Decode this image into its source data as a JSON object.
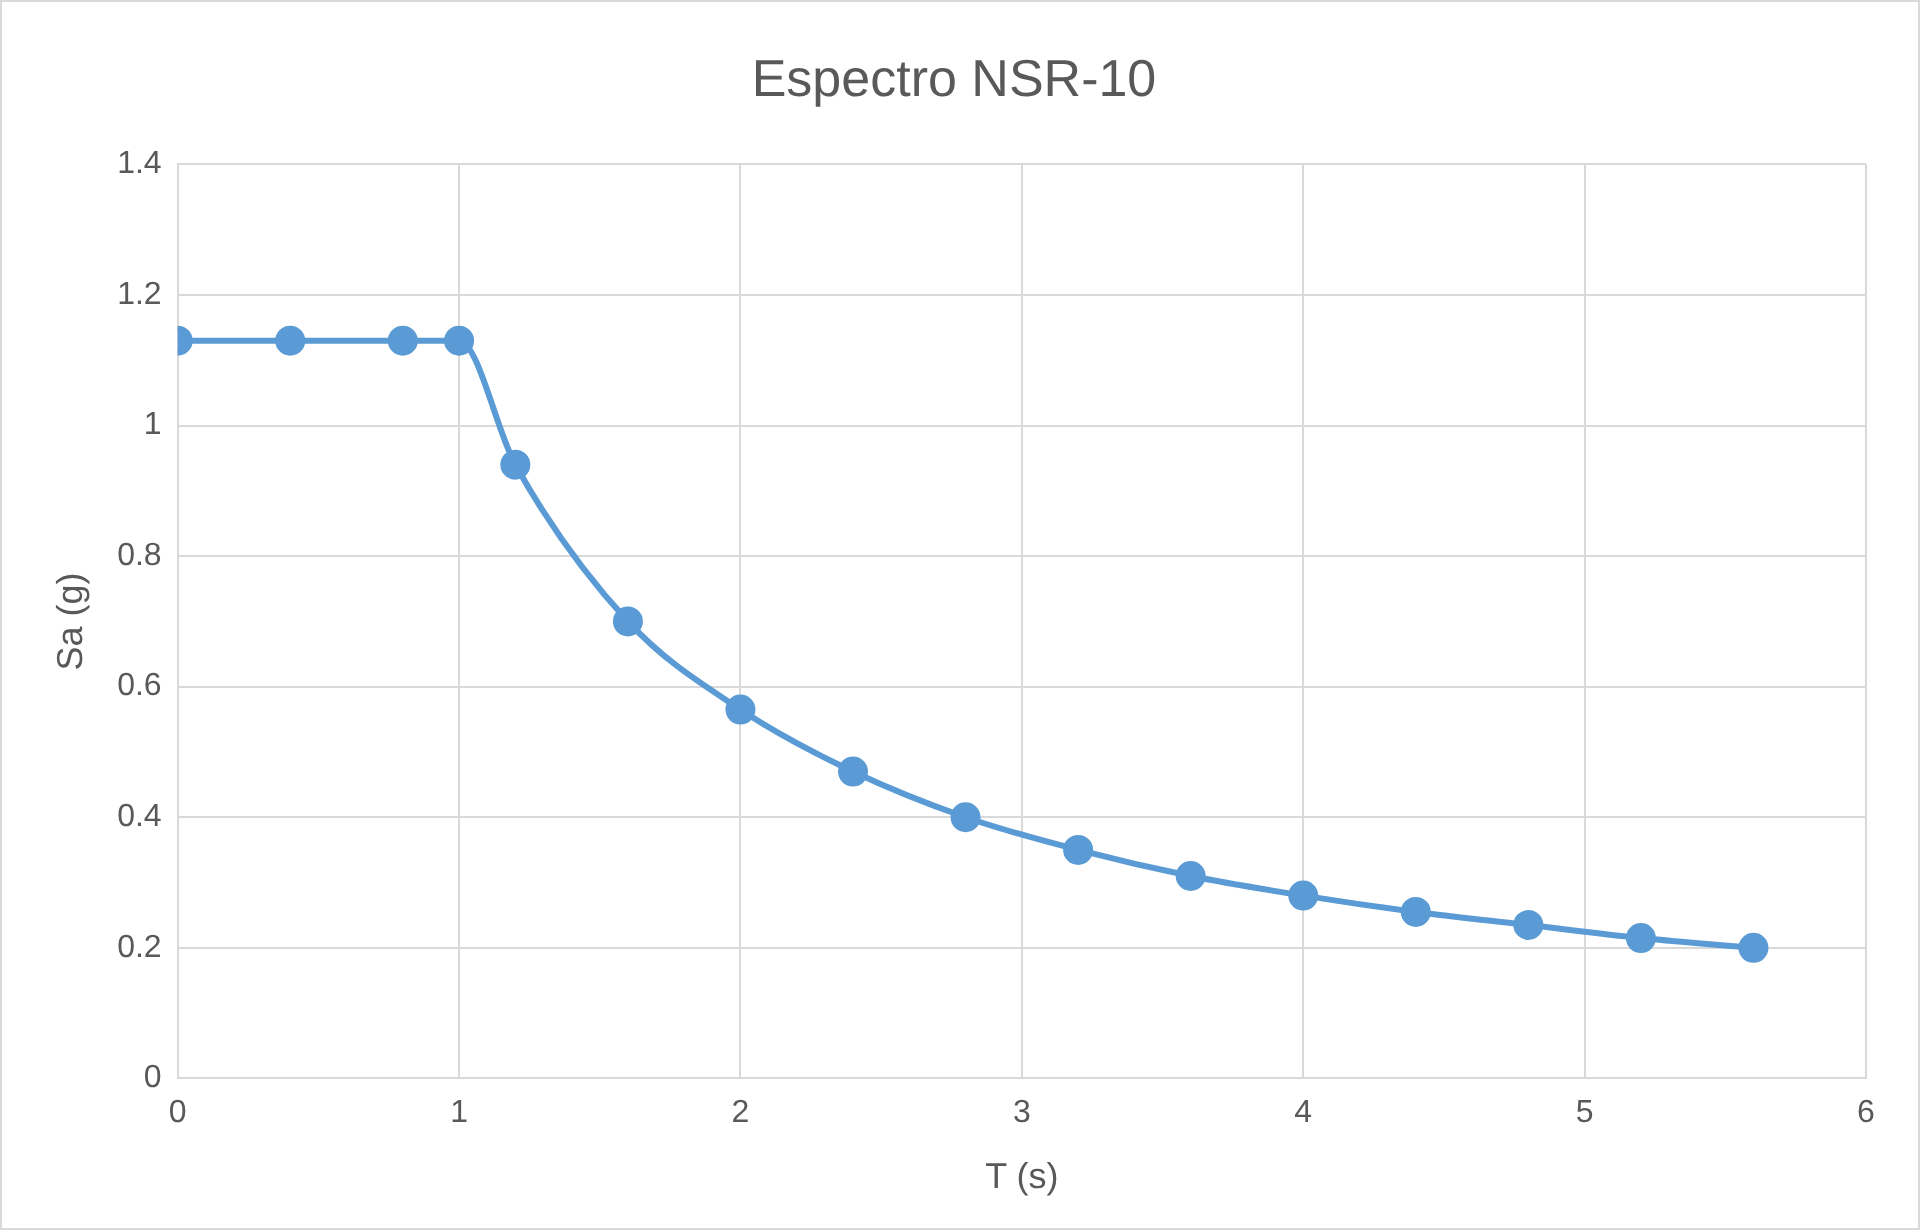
{
  "chart_data": {
    "type": "line",
    "title": "Espectro NSR-10",
    "xlabel": "T (s)",
    "ylabel": "Sa (g)",
    "x": [
      0,
      0.4,
      0.8,
      1.0,
      1.2,
      1.6,
      2.0,
      2.4,
      2.8,
      3.2,
      3.6,
      4.0,
      4.4,
      4.8,
      5.2,
      5.6
    ],
    "series": [
      {
        "color": "#5b9bd5",
        "values": [
          1.13,
          1.13,
          1.13,
          1.13,
          0.94,
          0.7,
          0.565,
          0.47,
          0.4,
          0.35,
          0.31,
          0.28,
          0.255,
          0.235,
          0.215,
          0.2
        ]
      }
    ],
    "xlim": [
      0,
      6
    ],
    "xticks": [
      0,
      1,
      2,
      3,
      4,
      5,
      6
    ],
    "ylim": [
      0,
      1.4
    ],
    "yticks": [
      0,
      0.2,
      0.4,
      0.6,
      0.8,
      1,
      1.2,
      1.4
    ],
    "grid": true,
    "legend": false,
    "marker": "circle",
    "line_style": "solid"
  }
}
